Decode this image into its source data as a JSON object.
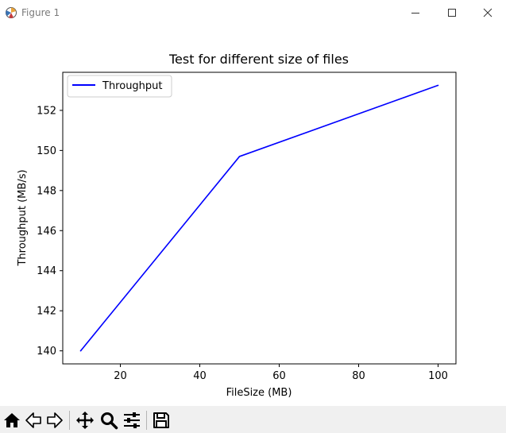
{
  "window": {
    "title": "Figure 1"
  },
  "icons": {
    "app": "matplotlib-figure-icon",
    "minimize": "minimize-icon",
    "maximize": "maximize-icon",
    "close": "close-icon"
  },
  "chart_data": {
    "type": "line",
    "title": "Test for different size of files",
    "xlabel": "FileSize (MB)",
    "ylabel": "Throughput (MB/s)",
    "legend_position": "top-left",
    "grid": false,
    "xlim": [
      5.5,
      104.5
    ],
    "ylim": [
      139.35,
      153.9
    ],
    "xticks": [
      20,
      40,
      60,
      80,
      100
    ],
    "yticks": [
      140,
      142,
      144,
      146,
      148,
      150,
      152
    ],
    "series": [
      {
        "name": "Throughput",
        "color": "#0000ff",
        "x": [
          10,
          50,
          100
        ],
        "y": [
          140.0,
          149.7,
          153.25
        ]
      }
    ]
  },
  "toolbar": {
    "tools": [
      {
        "icon": "home-icon",
        "name": "home-button"
      },
      {
        "icon": "back-arrow-icon",
        "name": "back-button"
      },
      {
        "icon": "forward-arrow-icon",
        "name": "forward-button"
      },
      {
        "icon": "pan-move-icon",
        "name": "pan-button"
      },
      {
        "icon": "zoom-magnifier-icon",
        "name": "zoom-button"
      },
      {
        "icon": "configure-subplots-icon",
        "name": "subplots-button"
      },
      {
        "icon": "save-floppy-icon",
        "name": "save-button"
      }
    ]
  }
}
